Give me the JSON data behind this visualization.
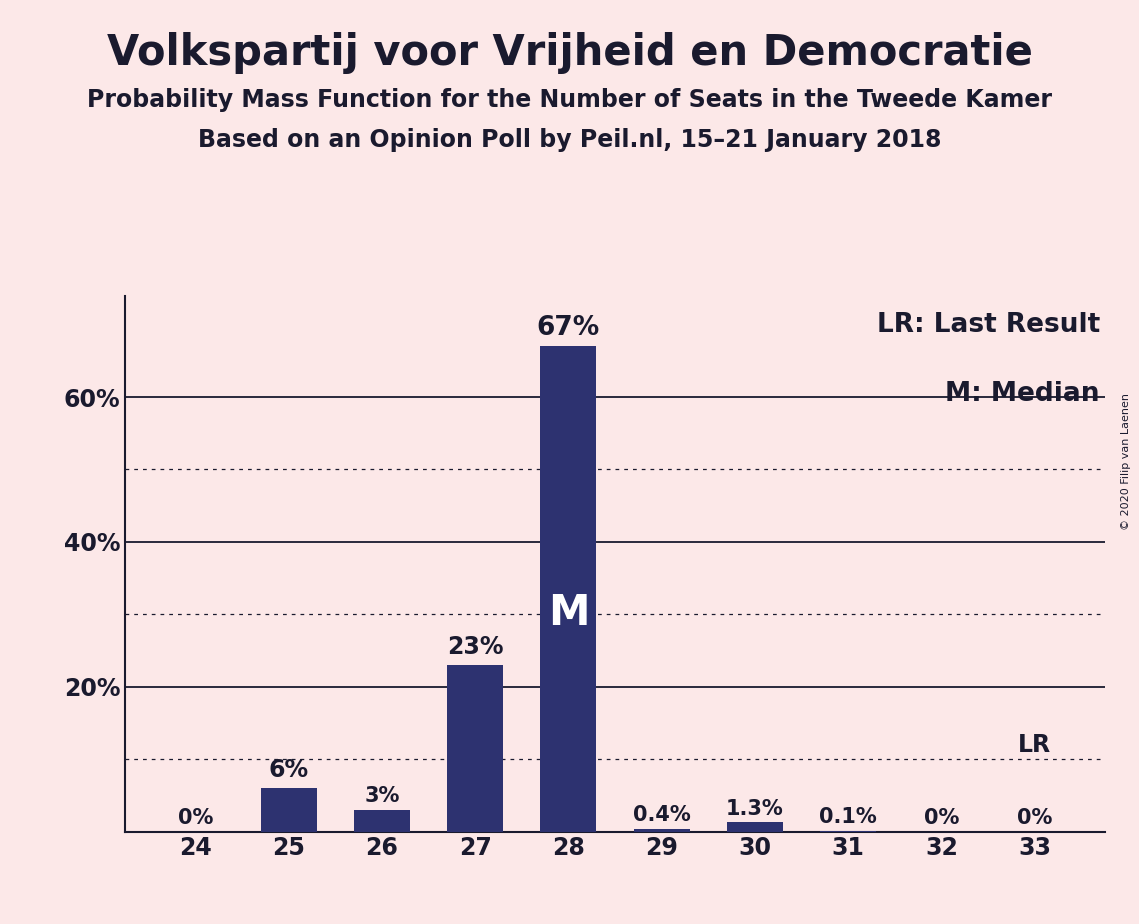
{
  "title": "Volkspartij voor Vrijheid en Democratie",
  "subtitle1": "Probability Mass Function for the Number of Seats in the Tweede Kamer",
  "subtitle2": "Based on an Opinion Poll by Peil.nl, 15–21 January 2018",
  "copyright": "© 2020 Filip van Laenen",
  "legend_lr": "LR: Last Result",
  "legend_m": "M: Median",
  "background_color": "#fce8e8",
  "bar_color": "#2d3270",
  "categories": [
    24,
    25,
    26,
    27,
    28,
    29,
    30,
    31,
    32,
    33
  ],
  "values": [
    0.0,
    6.0,
    3.0,
    23.0,
    67.0,
    0.4,
    1.3,
    0.1,
    0.0,
    0.0
  ],
  "labels": [
    "0%",
    "6%",
    "3%",
    "23%",
    "67%",
    "0.4%",
    "1.3%",
    "0.1%",
    "0%",
    "0%"
  ],
  "median_bar": 28,
  "last_result_bar": 33,
  "major_grid_at": [
    20,
    40,
    60
  ],
  "minor_grid_at": [
    10,
    30,
    50
  ],
  "ylim": [
    0,
    74
  ],
  "title_fontsize": 30,
  "subtitle_fontsize": 17,
  "label_fontsize": 15,
  "tick_fontsize": 17,
  "legend_fontsize": 19,
  "bar_label_color_inside": "#ffffff",
  "bar_label_color_outside": "#1a1a2e",
  "median_label_fontsize": 30,
  "text_color": "#1a1a2e"
}
